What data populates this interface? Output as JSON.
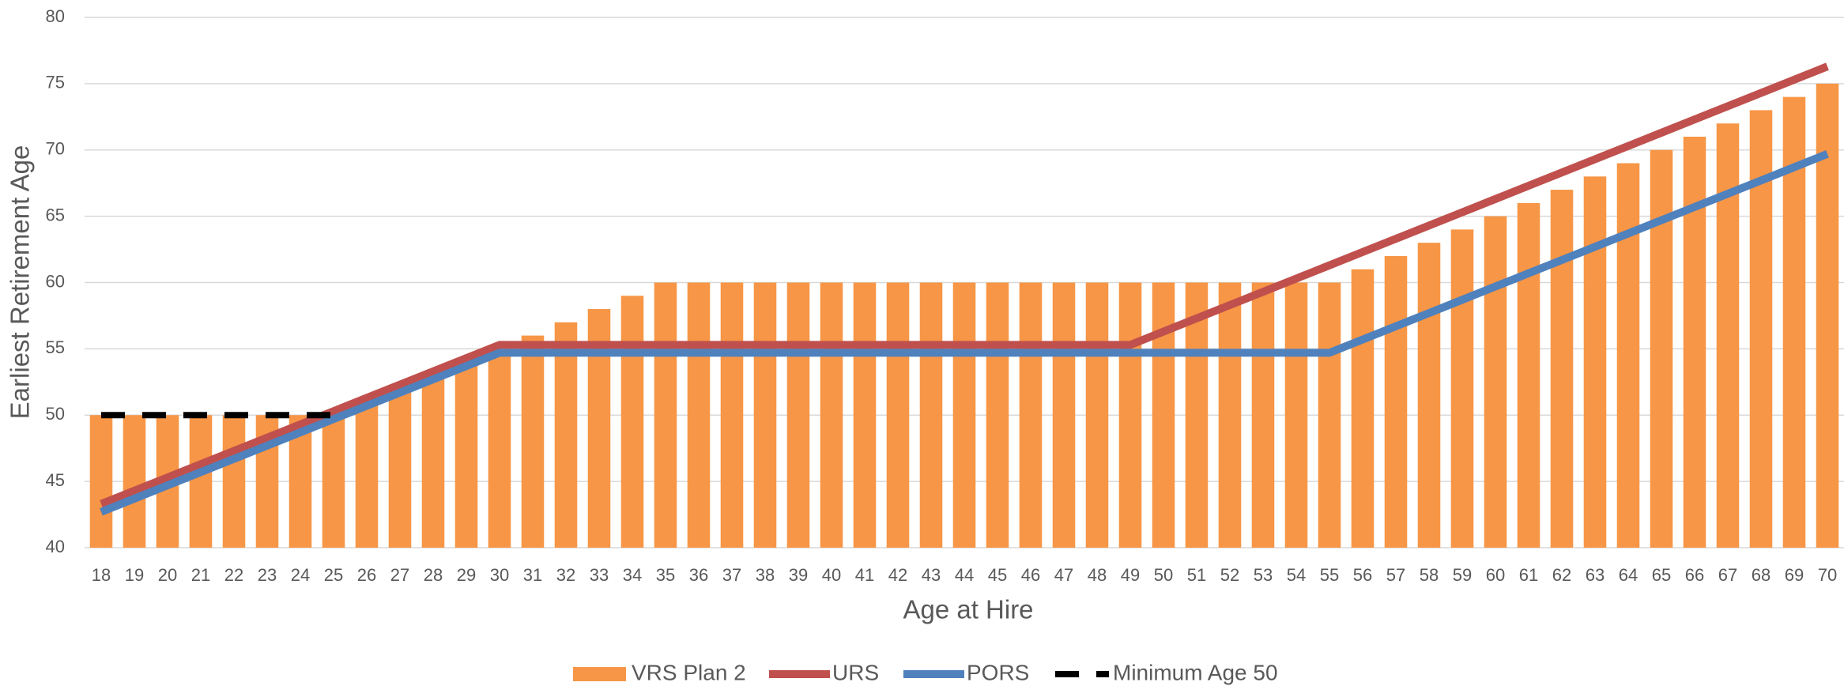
{
  "chart_data": {
    "type": "bar",
    "x_label": "Age at Hire",
    "y_label": "Earliest Retirement Age",
    "categories": [
      "18",
      "19",
      "20",
      "21",
      "22",
      "23",
      "24",
      "25",
      "26",
      "27",
      "28",
      "29",
      "30",
      "31",
      "32",
      "33",
      "34",
      "35",
      "36",
      "37",
      "38",
      "39",
      "40",
      "41",
      "42",
      "43",
      "44",
      "45",
      "46",
      "47",
      "48",
      "49",
      "50",
      "51",
      "52",
      "53",
      "54",
      "55",
      "56",
      "57",
      "58",
      "59",
      "60",
      "61",
      "62",
      "63",
      "64",
      "65",
      "66",
      "67",
      "68",
      "69",
      "70"
    ],
    "ylim": [
      40,
      80
    ],
    "yticks": [
      40,
      45,
      50,
      55,
      60,
      65,
      70,
      75,
      80
    ],
    "grid": true,
    "series": [
      {
        "name": "VRS Plan 2",
        "type": "bar",
        "color": "#F79646",
        "values": [
          50,
          50,
          50,
          50,
          50,
          50,
          50,
          50,
          51,
          52,
          53,
          54,
          55,
          56,
          57,
          58,
          59,
          60,
          60,
          60,
          60,
          60,
          60,
          60,
          60,
          60,
          60,
          60,
          60,
          60,
          60,
          60,
          60,
          60,
          60,
          60,
          60,
          60,
          61,
          62,
          63,
          64,
          65,
          66,
          67,
          68,
          69,
          70,
          71,
          72,
          73,
          74,
          75
        ]
      },
      {
        "name": "URS",
        "type": "line",
        "color": "#C0504D",
        "values": [
          43.3,
          44.3,
          45.3,
          46.3,
          47.3,
          48.3,
          49.3,
          50.3,
          51.3,
          52.3,
          53.3,
          54.3,
          55.3,
          55.3,
          55.3,
          55.3,
          55.3,
          55.3,
          55.3,
          55.3,
          55.3,
          55.3,
          55.3,
          55.3,
          55.3,
          55.3,
          55.3,
          55.3,
          55.3,
          55.3,
          55.3,
          55.3,
          56.3,
          57.3,
          58.3,
          59.3,
          60.3,
          61.3,
          62.3,
          63.3,
          64.3,
          65.3,
          66.3,
          67.3,
          68.3,
          69.3,
          70.3,
          71.3,
          72.3,
          73.3,
          74.3,
          75.3,
          76.3
        ]
      },
      {
        "name": "PORS",
        "type": "line",
        "color": "#4F81BD",
        "values": [
          42.7,
          43.7,
          44.7,
          45.7,
          46.7,
          47.7,
          48.7,
          49.7,
          50.7,
          51.7,
          52.7,
          53.7,
          54.7,
          54.7,
          54.7,
          54.7,
          54.7,
          54.7,
          54.7,
          54.7,
          54.7,
          54.7,
          54.7,
          54.7,
          54.7,
          54.7,
          54.7,
          54.7,
          54.7,
          54.7,
          54.7,
          54.7,
          54.7,
          54.7,
          54.7,
          54.7,
          54.7,
          54.7,
          55.7,
          56.7,
          57.7,
          58.7,
          59.7,
          60.7,
          61.7,
          62.7,
          63.7,
          64.7,
          65.7,
          66.7,
          67.7,
          68.7,
          69.7
        ]
      },
      {
        "name": "Minimum Age 50",
        "type": "line",
        "dashed": true,
        "color": "#000000",
        "values": [
          50,
          50,
          50,
          50,
          50,
          50,
          50,
          50,
          null,
          null,
          null,
          null,
          null,
          null,
          null,
          null,
          null,
          null,
          null,
          null,
          null,
          null,
          null,
          null,
          null,
          null,
          null,
          null,
          null,
          null,
          null,
          null,
          null,
          null,
          null,
          null,
          null,
          null,
          null,
          null,
          null,
          null,
          null,
          null,
          null,
          null,
          null,
          null,
          null,
          null,
          null,
          null,
          null
        ]
      }
    ]
  }
}
